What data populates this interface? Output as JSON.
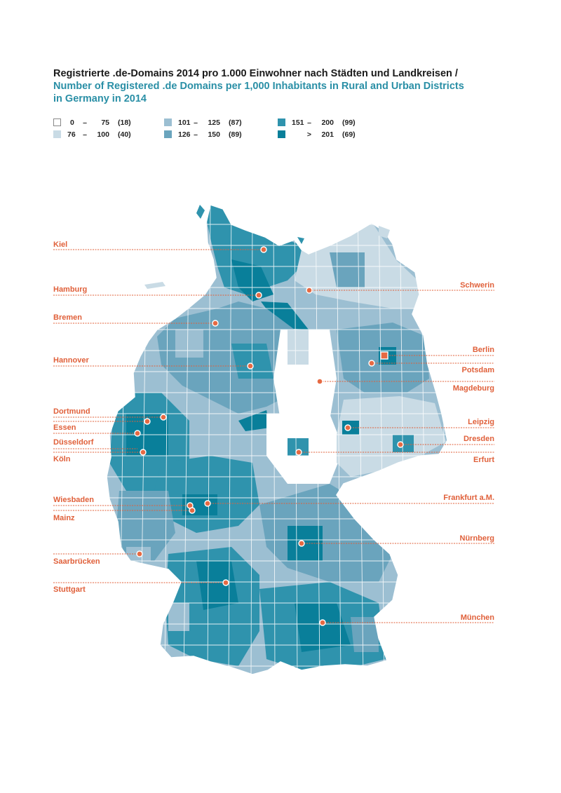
{
  "title": {
    "german": "Registrierte .de-Domains 2014 pro 1.000 Einwohner nach Städten und Landkreisen /",
    "english_line1": "Number of Registered .de Domains per 1,000 Inhabitants in Rural and Urban Districts",
    "english_line2": "in Germany in 2014"
  },
  "legend": [
    {
      "low": "0",
      "dash": "–",
      "high": "75",
      "count": "(18)",
      "color": "#ffffff"
    },
    {
      "low": "76",
      "dash": "–",
      "high": "100",
      "count": "(40)",
      "color": "#c9dbe5"
    },
    {
      "low": "101",
      "dash": "–",
      "high": "125",
      "count": "(87)",
      "color": "#9cbfd2"
    },
    {
      "low": "126",
      "dash": "–",
      "high": "150",
      "count": "(89)",
      "color": "#6aa4bd"
    },
    {
      "low": "151",
      "dash": "–",
      "high": "200",
      "count": "(99)",
      "color": "#2f93ad"
    },
    {
      "low": "",
      "dash": ">",
      "high": "201",
      "count": "(69)",
      "color": "#097f9a"
    }
  ],
  "colors": {
    "label": "#e0603a",
    "marker": "#e66a43",
    "title_en": "#2a8fa6",
    "border": "#ffffff"
  },
  "cities": [
    {
      "name": "Kiel",
      "side": "left"
    },
    {
      "name": "Hamburg",
      "side": "left"
    },
    {
      "name": "Bremen",
      "side": "left"
    },
    {
      "name": "Hannover",
      "side": "left"
    },
    {
      "name": "Dortmund",
      "side": "left"
    },
    {
      "name": "Essen",
      "side": "left"
    },
    {
      "name": "Düsseldorf",
      "side": "left"
    },
    {
      "name": "Köln",
      "side": "left"
    },
    {
      "name": "Wiesbaden",
      "side": "left"
    },
    {
      "name": "Mainz",
      "side": "left"
    },
    {
      "name": "Saarbrücken",
      "side": "left"
    },
    {
      "name": "Stuttgart",
      "side": "left"
    },
    {
      "name": "Schwerin",
      "side": "right"
    },
    {
      "name": "Berlin",
      "side": "right",
      "marker": "square"
    },
    {
      "name": "Potsdam",
      "side": "right"
    },
    {
      "name": "Magdeburg",
      "side": "right"
    },
    {
      "name": "Leipzig",
      "side": "right"
    },
    {
      "name": "Dresden",
      "side": "right"
    },
    {
      "name": "Erfurt",
      "side": "right"
    },
    {
      "name": "Frankfurt a.M.",
      "side": "right"
    },
    {
      "name": "Nürnberg",
      "side": "right"
    },
    {
      "name": "München",
      "side": "right"
    }
  ]
}
